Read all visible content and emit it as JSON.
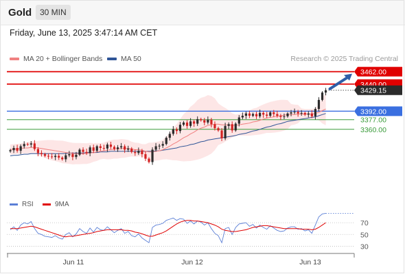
{
  "header": {
    "symbol": "Gold",
    "interval": "30 MIN"
  },
  "datetime": "Friday, June 13, 2025 3:47:14 AM CET",
  "legend": [
    {
      "label": "MA 20 + Bollinger Bands",
      "color": "#f08080"
    },
    {
      "label": "MA 50",
      "color": "#2f5597"
    }
  ],
  "credit": "Research © 2025 Trading Central",
  "rsi_legend": [
    {
      "label": "RSI",
      "color": "#5b7fd6"
    },
    {
      "label": "9MA",
      "color": "#e00000"
    }
  ],
  "colors": {
    "resistance": "#e00000",
    "pivot": "#3a6fe0",
    "support": "#3a9b3a",
    "up": "#2b2b2b",
    "down": "#d32222",
    "bb": "#fde3e3",
    "ma20": "#f08080",
    "ma50": "#2f5597",
    "arrow": "#2f5fa8"
  },
  "chart_data": [
    {
      "type": "candlestick",
      "title": "Gold",
      "ylim": [
        3247,
        3470
      ],
      "x_ticks": [
        "Jun 11",
        "Jun 12",
        "Jun 13"
      ],
      "levels": [
        {
          "value": 3462.0,
          "label": "3462.00",
          "kind": "resistance"
        },
        {
          "value": 3440.0,
          "label": "3440.00",
          "kind": "resistance"
        },
        {
          "value": 3429.15,
          "label": "3429.15",
          "kind": "last"
        },
        {
          "value": 3392.0,
          "label": "3392.00",
          "kind": "pivot"
        },
        {
          "value": 3377.0,
          "label": "3377.00",
          "kind": "support"
        },
        {
          "value": 3360.0,
          "label": "3360.00",
          "kind": "support"
        }
      ],
      "close": [
        3323,
        3327,
        3322,
        3330,
        3334,
        3333,
        3335,
        3325,
        3318,
        3316,
        3313,
        3312,
        3311,
        3313,
        3310,
        3307,
        3314,
        3316,
        3311,
        3315,
        3324,
        3320,
        3318,
        3328,
        3322,
        3330,
        3327,
        3326,
        3333,
        3329,
        3325,
        3328,
        3330,
        3324,
        3326,
        3320,
        3318,
        3322,
        3316,
        3308,
        3302,
        3324,
        3330,
        3331,
        3334,
        3345,
        3352,
        3360,
        3357,
        3368,
        3372,
        3366,
        3374,
        3370,
        3378,
        3376,
        3372,
        3377,
        3369,
        3362,
        3358,
        3344,
        3366,
        3369,
        3358,
        3370,
        3381,
        3384,
        3388,
        3384,
        3387,
        3383,
        3389,
        3386,
        3384,
        3390,
        3387,
        3384,
        3382,
        3383,
        3388,
        3390,
        3391,
        3388,
        3389,
        3386,
        3388,
        3383,
        3396,
        3412,
        3425,
        3429.15
      ],
      "ma20": [
        3324,
        3325,
        3325,
        3326,
        3327,
        3327,
        3328,
        3328,
        3327,
        3326,
        3325,
        3324,
        3323,
        3322,
        3321,
        3320,
        3319,
        3318,
        3317,
        3317,
        3317,
        3317,
        3317,
        3318,
        3319,
        3320,
        3321,
        3322,
        3323,
        3324,
        3325,
        3325,
        3326,
        3326,
        3326,
        3325,
        3324,
        3324,
        3323,
        3321,
        3320,
        3320,
        3321,
        3322,
        3324,
        3327,
        3330,
        3334,
        3337,
        3341,
        3345,
        3348,
        3352,
        3355,
        3359,
        3362,
        3364,
        3367,
        3368,
        3369,
        3369,
        3368,
        3368,
        3368,
        3367,
        3367,
        3368,
        3369,
        3370,
        3371,
        3373,
        3374,
        3376,
        3378,
        3380,
        3381,
        3382,
        3383,
        3384,
        3385,
        3386,
        3386,
        3386,
        3387,
        3387,
        3387,
        3387,
        3387,
        3388,
        3390,
        3393,
        3396
      ],
      "ma50": [
        3313,
        3314,
        3314,
        3315,
        3316,
        3316,
        3317,
        3317,
        3317,
        3317,
        3317,
        3317,
        3317,
        3317,
        3317,
        3317,
        3317,
        3318,
        3318,
        3318,
        3318,
        3318,
        3319,
        3319,
        3319,
        3319,
        3320,
        3320,
        3320,
        3321,
        3321,
        3321,
        3321,
        3321,
        3321,
        3321,
        3321,
        3321,
        3321,
        3321,
        3321,
        3321,
        3322,
        3322,
        3323,
        3324,
        3325,
        3326,
        3327,
        3329,
        3330,
        3331,
        3333,
        3334,
        3336,
        3338,
        3339,
        3341,
        3342,
        3343,
        3344,
        3345,
        3346,
        3347,
        3348,
        3349,
        3351,
        3352,
        3353,
        3355,
        3357,
        3358,
        3360,
        3362,
        3364,
        3365,
        3367,
        3369,
        3370,
        3372,
        3374,
        3375,
        3376,
        3377,
        3378,
        3379,
        3380,
        3381,
        3382,
        3384,
        3386,
        3388
      ]
    },
    {
      "type": "line",
      "title": "RSI",
      "ylim": [
        20,
        90
      ],
      "y_ticks": [
        70,
        50,
        30
      ],
      "rsi": [
        58,
        63,
        57,
        66,
        70,
        68,
        72,
        60,
        52,
        50,
        47,
        46,
        45,
        48,
        44,
        42,
        50,
        53,
        46,
        51,
        60,
        55,
        52,
        61,
        54,
        62,
        58,
        57,
        63,
        58,
        53,
        57,
        60,
        52,
        55,
        48,
        46,
        51,
        44,
        40,
        36,
        62,
        66,
        67,
        69,
        74,
        76,
        78,
        74,
        77,
        76,
        69,
        73,
        68,
        73,
        71,
        66,
        70,
        60,
        52,
        48,
        36,
        60,
        62,
        50,
        62,
        68,
        69,
        70,
        64,
        67,
        61,
        66,
        62,
        59,
        65,
        61,
        57,
        55,
        56,
        61,
        63,
        63,
        59,
        60,
        56,
        58,
        52,
        66,
        80,
        85,
        86
      ],
      "rsi_ma9": [
        60,
        60,
        60,
        61,
        62,
        63,
        64,
        63,
        61,
        59,
        57,
        55,
        53,
        51,
        49,
        47,
        46,
        47,
        47,
        48,
        49,
        50,
        51,
        52,
        53,
        55,
        56,
        57,
        58,
        58,
        58,
        58,
        58,
        57,
        57,
        56,
        54,
        53,
        51,
        49,
        47,
        47,
        49,
        51,
        53,
        56,
        60,
        64,
        68,
        71,
        73,
        74,
        74,
        73,
        73,
        72,
        71,
        70,
        68,
        66,
        63,
        59,
        57,
        56,
        55,
        55,
        56,
        57,
        58,
        60,
        62,
        63,
        64,
        65,
        65,
        64,
        63,
        62,
        61,
        60,
        60,
        60,
        60,
        60,
        59,
        59,
        59,
        58,
        59,
        62,
        66,
        70
      ]
    }
  ]
}
